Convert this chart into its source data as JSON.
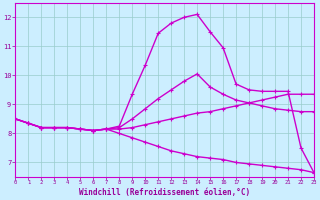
{
  "background_color": "#cceeff",
  "grid_color": "#99cccc",
  "line_color": "#cc00cc",
  "xlabel": "Windchill (Refroidissement éolien,°C)",
  "xlabel_color": "#990099",
  "tick_color": "#990099",
  "xlim": [
    0,
    23
  ],
  "ylim": [
    6.5,
    12.5
  ],
  "yticks": [
    7,
    8,
    9,
    10,
    11,
    12
  ],
  "line1_x": [
    0,
    1,
    2,
    3,
    4,
    5,
    6,
    7,
    8,
    9,
    10,
    11,
    12,
    13,
    14,
    15,
    16,
    17,
    18,
    19,
    20,
    21,
    22,
    23
  ],
  "line1_y": [
    8.5,
    8.35,
    8.2,
    8.2,
    8.2,
    8.15,
    8.1,
    8.15,
    8.25,
    9.35,
    10.35,
    11.45,
    11.8,
    12.0,
    12.1,
    11.5,
    10.95,
    9.7,
    9.5,
    9.45,
    9.45,
    9.45,
    7.5,
    6.65
  ],
  "line2_x": [
    0,
    1,
    2,
    3,
    4,
    5,
    6,
    7,
    8,
    9,
    10,
    11,
    12,
    13,
    14,
    15,
    16,
    17,
    18,
    19,
    20,
    21,
    22,
    23
  ],
  "line2_y": [
    8.5,
    8.35,
    8.2,
    8.2,
    8.2,
    8.15,
    8.1,
    8.15,
    8.2,
    8.5,
    8.85,
    9.2,
    9.5,
    9.8,
    10.05,
    9.6,
    9.35,
    9.15,
    9.05,
    8.95,
    8.85,
    8.8,
    8.75,
    8.75
  ],
  "line3_x": [
    0,
    1,
    2,
    3,
    4,
    5,
    6,
    7,
    8,
    9,
    10,
    11,
    12,
    13,
    14,
    15,
    16,
    17,
    18,
    19,
    20,
    21,
    22,
    23
  ],
  "line3_y": [
    8.5,
    8.35,
    8.2,
    8.2,
    8.2,
    8.15,
    8.1,
    8.15,
    8.15,
    8.2,
    8.3,
    8.4,
    8.5,
    8.6,
    8.7,
    8.75,
    8.85,
    8.95,
    9.05,
    9.15,
    9.25,
    9.35,
    9.35,
    9.35
  ],
  "line4_x": [
    0,
    1,
    2,
    3,
    4,
    5,
    6,
    7,
    8,
    9,
    10,
    11,
    12,
    13,
    14,
    15,
    16,
    17,
    18,
    19,
    20,
    21,
    22,
    23
  ],
  "line4_y": [
    8.5,
    8.35,
    8.2,
    8.2,
    8.2,
    8.15,
    8.1,
    8.15,
    8.0,
    7.85,
    7.7,
    7.55,
    7.4,
    7.3,
    7.2,
    7.15,
    7.1,
    7.0,
    6.95,
    6.9,
    6.85,
    6.8,
    6.75,
    6.65
  ]
}
